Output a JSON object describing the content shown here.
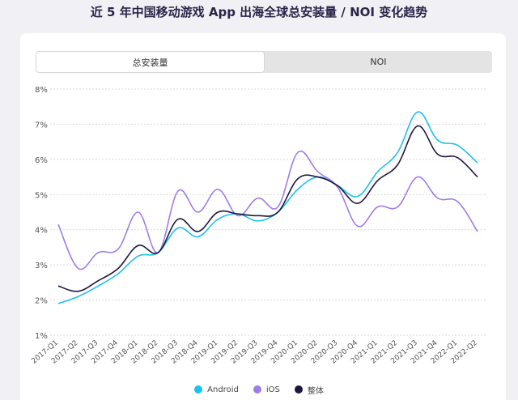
{
  "title": "近 5 年中国移动游戏 App 出海全球总安装量 / NOI 变化趋势",
  "tabs": [
    {
      "label": "总安装量",
      "active": true
    },
    {
      "label": "NOI",
      "active": false
    }
  ],
  "chart_data": {
    "type": "line",
    "title": "",
    "xlabel": "",
    "ylabel": "",
    "ylim": [
      1,
      8
    ],
    "yticks": [
      "1%",
      "2%",
      "3%",
      "4%",
      "5%",
      "6%",
      "7%",
      "8%"
    ],
    "grid": true,
    "legend_position": "bottom",
    "categories": [
      "2017-Q1",
      "2017-Q2",
      "2017-Q3",
      "2017-Q4",
      "2018-Q1",
      "2018-Q2",
      "2018-Q3",
      "2018-Q4",
      "2019-Q1",
      "2019-Q2",
      "2019-Q3",
      "2019-Q4",
      "2020-Q1",
      "2020-Q2",
      "2020-Q3",
      "2020-Q4",
      "2021-Q1",
      "2021-Q2",
      "2021-Q3",
      "2021-Q4",
      "2022-Q1",
      "2022-Q2"
    ],
    "series": [
      {
        "name": "Android",
        "color": "#1cc1ec",
        "values": [
          1.9,
          2.1,
          2.4,
          2.75,
          3.25,
          3.35,
          4.05,
          3.8,
          4.3,
          4.45,
          4.25,
          4.5,
          5.15,
          5.5,
          5.25,
          4.95,
          5.65,
          6.2,
          7.35,
          6.55,
          6.4,
          5.9
        ]
      },
      {
        "name": "iOS",
        "color": "#9f7ce9",
        "values": [
          4.15,
          2.9,
          3.35,
          3.45,
          4.5,
          3.35,
          5.1,
          4.5,
          5.15,
          4.4,
          4.9,
          4.65,
          6.2,
          5.65,
          5.2,
          4.1,
          4.65,
          4.65,
          5.5,
          4.9,
          4.8,
          3.95
        ]
      },
      {
        "name": "整体",
        "color": "#1f1640",
        "values": [
          2.4,
          2.25,
          2.55,
          2.9,
          3.55,
          3.35,
          4.3,
          3.95,
          4.5,
          4.45,
          4.4,
          4.5,
          5.45,
          5.5,
          5.25,
          4.75,
          5.4,
          5.85,
          6.95,
          6.15,
          6.05,
          5.5
        ]
      }
    ]
  }
}
